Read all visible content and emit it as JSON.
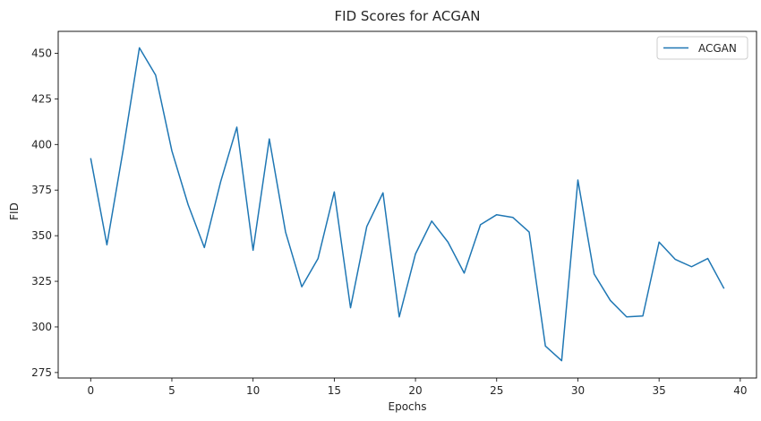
{
  "chart_data": {
    "type": "line",
    "title": "FID Scores for ACGAN",
    "xlabel": "Epochs",
    "ylabel": "FID",
    "xlim": [
      -2,
      41
    ],
    "ylim": [
      272,
      462
    ],
    "xticks": [
      0,
      5,
      10,
      15,
      20,
      25,
      30,
      35,
      40
    ],
    "yticks": [
      275,
      300,
      325,
      350,
      375,
      400,
      425,
      450
    ],
    "grid": false,
    "legend": "top-right",
    "series": [
      {
        "name": "ACGAN",
        "color": "#1f77b4",
        "x": [
          0,
          1,
          2,
          3,
          4,
          5,
          6,
          7,
          8,
          9,
          10,
          11,
          12,
          13,
          14,
          15,
          16,
          17,
          18,
          19,
          20,
          21,
          22,
          23,
          24,
          25,
          26,
          27,
          28,
          29,
          30,
          31,
          32,
          33,
          34,
          35,
          36,
          37,
          38,
          39
        ],
        "y": [
          392.5,
          345,
          397,
          453,
          438,
          396.5,
          367,
          343.5,
          379.5,
          409.5,
          342,
          403,
          352,
          322,
          337.5,
          374,
          310.5,
          355,
          373.5,
          305.5,
          340,
          358,
          346.5,
          329.5,
          356,
          361.5,
          360,
          352,
          289.5,
          281.5,
          380.5,
          329,
          314.5,
          305.5,
          306,
          346.5,
          337,
          333,
          337.5,
          321
        ]
      }
    ]
  }
}
